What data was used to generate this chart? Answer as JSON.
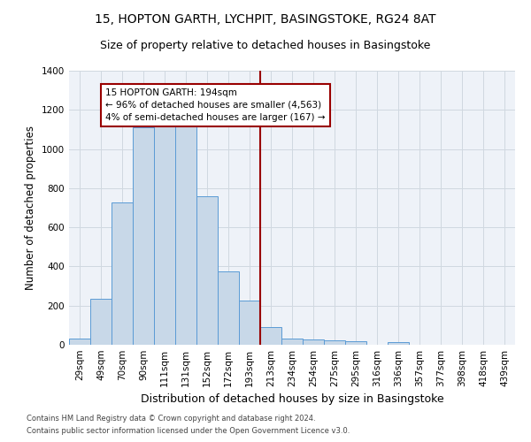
{
  "title": "15, HOPTON GARTH, LYCHPIT, BASINGSTOKE, RG24 8AT",
  "subtitle": "Size of property relative to detached houses in Basingstoke",
  "xlabel": "Distribution of detached houses by size in Basingstoke",
  "ylabel": "Number of detached properties",
  "footer1": "Contains HM Land Registry data © Crown copyright and database right 2024.",
  "footer2": "Contains public sector information licensed under the Open Government Licence v3.0.",
  "bar_labels": [
    "29sqm",
    "49sqm",
    "70sqm",
    "90sqm",
    "111sqm",
    "131sqm",
    "152sqm",
    "172sqm",
    "193sqm",
    "213sqm",
    "234sqm",
    "254sqm",
    "275sqm",
    "295sqm",
    "316sqm",
    "336sqm",
    "357sqm",
    "377sqm",
    "398sqm",
    "418sqm",
    "439sqm"
  ],
  "bar_values": [
    30,
    235,
    725,
    1110,
    1115,
    1120,
    760,
    375,
    225,
    90,
    30,
    25,
    22,
    17,
    0,
    12,
    0,
    0,
    0,
    0,
    0
  ],
  "bar_color": "#c8d8e8",
  "bar_edge_color": "#5b9bd5",
  "vline_x": 8.5,
  "vline_color": "#990000",
  "annotation_text": "15 HOPTON GARTH: 194sqm\n← 96% of detached houses are smaller (4,563)\n4% of semi-detached houses are larger (167) →",
  "annotation_box_color": "#990000",
  "ylim": [
    0,
    1400
  ],
  "yticks": [
    0,
    200,
    400,
    600,
    800,
    1000,
    1200,
    1400
  ],
  "grid_color": "#d0d8e0",
  "bg_color": "#eef2f8",
  "title_fontsize": 10,
  "subtitle_fontsize": 9,
  "xlabel_fontsize": 9,
  "ylabel_fontsize": 8.5,
  "tick_fontsize": 7.5,
  "annotation_fontsize": 7.5,
  "footer_fontsize": 6
}
